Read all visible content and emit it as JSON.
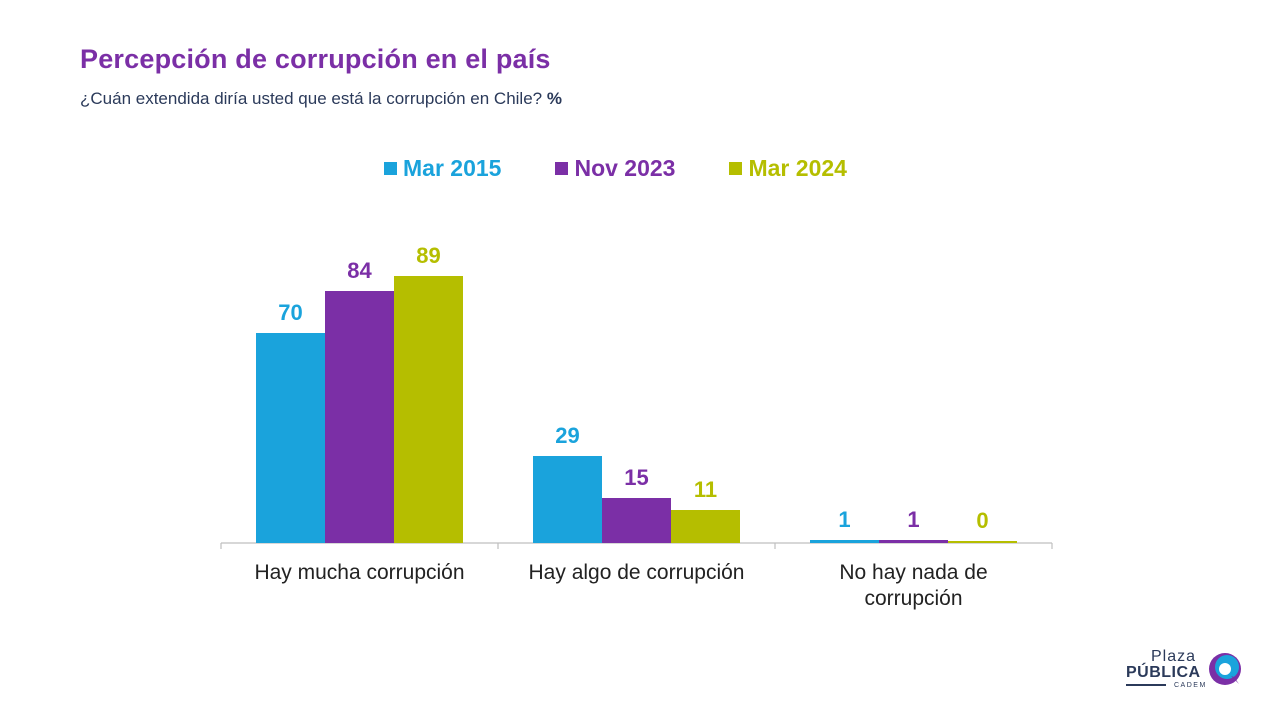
{
  "header": {
    "title": "Percepción de corrupción en el país",
    "subtitle": "¿Cuán extendida diría usted que está la corrupción en Chile?",
    "unit": "%"
  },
  "legend": [
    {
      "label": "Mar 2015",
      "color": "#1aa3dc"
    },
    {
      "label": "Nov 2023",
      "color": "#7b2fa6"
    },
    {
      "label": "Mar 2024",
      "color": "#b5be00"
    }
  ],
  "chart_data": {
    "type": "bar",
    "title": "Percepción de corrupción en el país",
    "subtitle": "¿Cuán extendida diría usted que está la corrupción en Chile? %",
    "categories": [
      [
        "Hay mucha corrupción"
      ],
      [
        "Hay algo de corrupción"
      ],
      [
        "No hay nada de",
        "corrupción"
      ]
    ],
    "series": [
      {
        "name": "Mar 2015",
        "values": [
          70,
          29,
          1
        ],
        "color": "#1aa3dc"
      },
      {
        "name": "Nov 2023",
        "values": [
          84,
          15,
          1
        ],
        "color": "#7b2fa6"
      },
      {
        "name": "Mar 2024",
        "values": [
          89,
          11,
          0
        ],
        "color": "#b5be00"
      }
    ],
    "xlabel": "",
    "ylabel": "",
    "ylim": [
      0,
      100
    ],
    "grid": false,
    "legend_position": "top"
  },
  "logo": {
    "line1": "Plaza",
    "line2": "PÚBLICA",
    "line3": "CADEM"
  }
}
